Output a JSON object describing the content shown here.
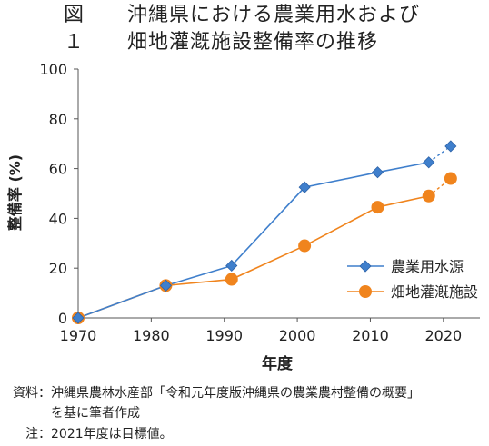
{
  "figure": {
    "number": "図１",
    "title_line1": "沖縄県における農業用水および",
    "title_line2": "畑地灌漑施設整備率の推移"
  },
  "chart_data": {
    "type": "line",
    "xlabel": "年度",
    "ylabel": "整備率 (%)",
    "xlim": [
      1970,
      2025
    ],
    "ylim": [
      0,
      100
    ],
    "xticks": [
      1970,
      1980,
      1990,
      2000,
      2010,
      2020
    ],
    "yticks": [
      0,
      20,
      40,
      60,
      80,
      100
    ],
    "grid": false,
    "legend_position": "center-right",
    "series": [
      {
        "name": "農業用水源",
        "color": "#3f7fcc",
        "marker": "diamond",
        "points": [
          [
            1970,
            0
          ],
          [
            1982,
            13
          ],
          [
            1991,
            21
          ],
          [
            2001,
            52.5
          ],
          [
            2011,
            58.5
          ],
          [
            2018,
            62.5
          ],
          [
            2021,
            69
          ]
        ]
      },
      {
        "name": "畑地灌漑施設",
        "color": "#f0841d",
        "marker": "circle",
        "points": [
          [
            1970,
            0
          ],
          [
            1982,
            13
          ],
          [
            1991,
            15.5
          ],
          [
            2001,
            29
          ],
          [
            2011,
            44.5
          ],
          [
            2018,
            49
          ],
          [
            2021,
            56
          ]
        ]
      }
    ],
    "dashed_last_segment": true
  },
  "notes": {
    "source_label": "資料：",
    "source_line1": "沖縄県農林水産部「令和元年度版沖縄県の農業農村整備の概要」",
    "source_line2": "を基に筆者作成",
    "note_label": "注：",
    "note_text": "2021年度は目標値。"
  }
}
